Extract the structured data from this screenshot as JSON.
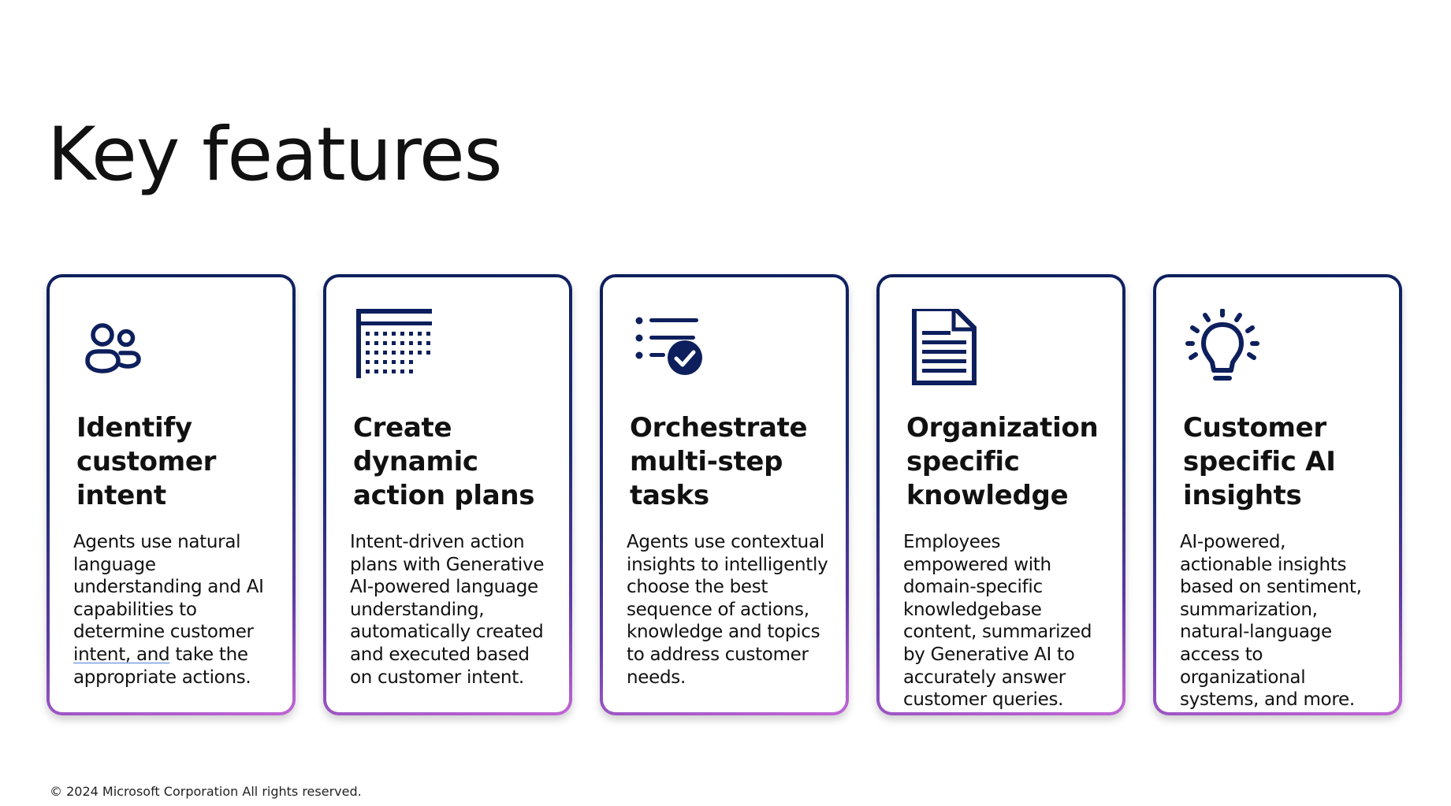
{
  "page": {
    "title": "Key features",
    "footer": "© 2024 Microsoft Corporation All rights reserved."
  },
  "colors": {
    "icon": "#0d1f5c",
    "border_start": "#0d1f5c",
    "border_end": "#c266d6"
  },
  "cards": [
    {
      "icon": "people-icon",
      "title": "Identify customer intent",
      "desc_before": "Agents use natural language understanding and AI capabilities to determine customer ",
      "desc_marked": "intent, and",
      "desc_after": " take the appropriate actions."
    },
    {
      "icon": "calendar-grid-icon",
      "title": "Create dynamic action plans",
      "description": "Intent-driven action plans with Generative AI-powered language understanding, automatically created and executed based on customer intent."
    },
    {
      "icon": "checklist-icon",
      "title": "Orchestrate multi-step tasks",
      "description": "Agents use contextual insights to intelligently choose the best sequence of actions, knowledge and topics to address customer needs."
    },
    {
      "icon": "document-icon",
      "title": "Organization specific knowledge",
      "description": "Employees empowered with domain-specific knowledgebase content, summarized by Generative AI to accurately answer customer queries."
    },
    {
      "icon": "lightbulb-icon",
      "title": "Customer specific AI insights",
      "description": "AI-powered, actionable insights based on sentiment, summarization, natural-language access to organizational systems, and more."
    }
  ]
}
